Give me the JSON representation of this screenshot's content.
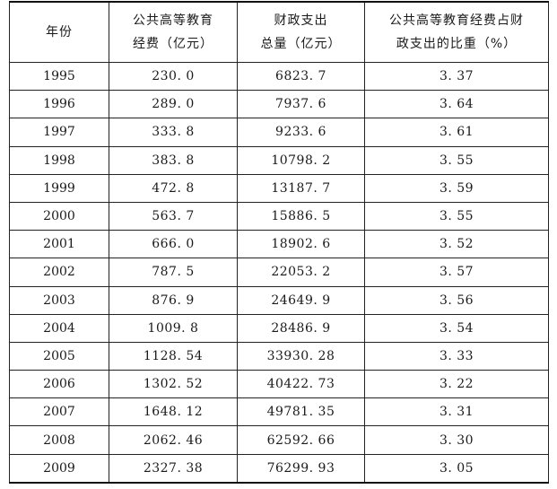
{
  "table": {
    "headers": [
      {
        "lines": [
          "年份"
        ]
      },
      {
        "lines": [
          "公共高等教育",
          "经费（亿元）"
        ]
      },
      {
        "lines": [
          "财政支出",
          "总量（亿元）"
        ]
      },
      {
        "lines": [
          "公共高等教育经费占财",
          "政支出的比重（%）"
        ]
      }
    ],
    "rows": [
      [
        "1995",
        "230. 0",
        "6823. 7",
        "3. 37"
      ],
      [
        "1996",
        "289. 0",
        "7937. 6",
        "3. 64"
      ],
      [
        "1997",
        "333. 8",
        "9233. 6",
        "3. 61"
      ],
      [
        "1998",
        "383. 8",
        "10798. 2",
        "3. 55"
      ],
      [
        "1999",
        "472. 8",
        "13187. 7",
        "3. 59"
      ],
      [
        "2000",
        "563. 7",
        "15886. 5",
        "3. 55"
      ],
      [
        "2001",
        "666. 0",
        "18902. 6",
        "3. 52"
      ],
      [
        "2002",
        "787. 5",
        "22053. 2",
        "3. 57"
      ],
      [
        "2003",
        "876. 9",
        "24649. 9",
        "3. 56"
      ],
      [
        "2004",
        "1009. 8",
        "28486. 9",
        "3. 54"
      ],
      [
        "2005",
        "1128. 54",
        "33930. 28",
        "3. 33"
      ],
      [
        "2006",
        "1302. 52",
        "40422. 73",
        "3. 22"
      ],
      [
        "2007",
        "1648. 12",
        "49781. 35",
        "3. 31"
      ],
      [
        "2008",
        "2062. 46",
        "62592. 66",
        "3. 30"
      ],
      [
        "2009",
        "2327. 38",
        "76299. 93",
        "3. 05"
      ]
    ]
  }
}
